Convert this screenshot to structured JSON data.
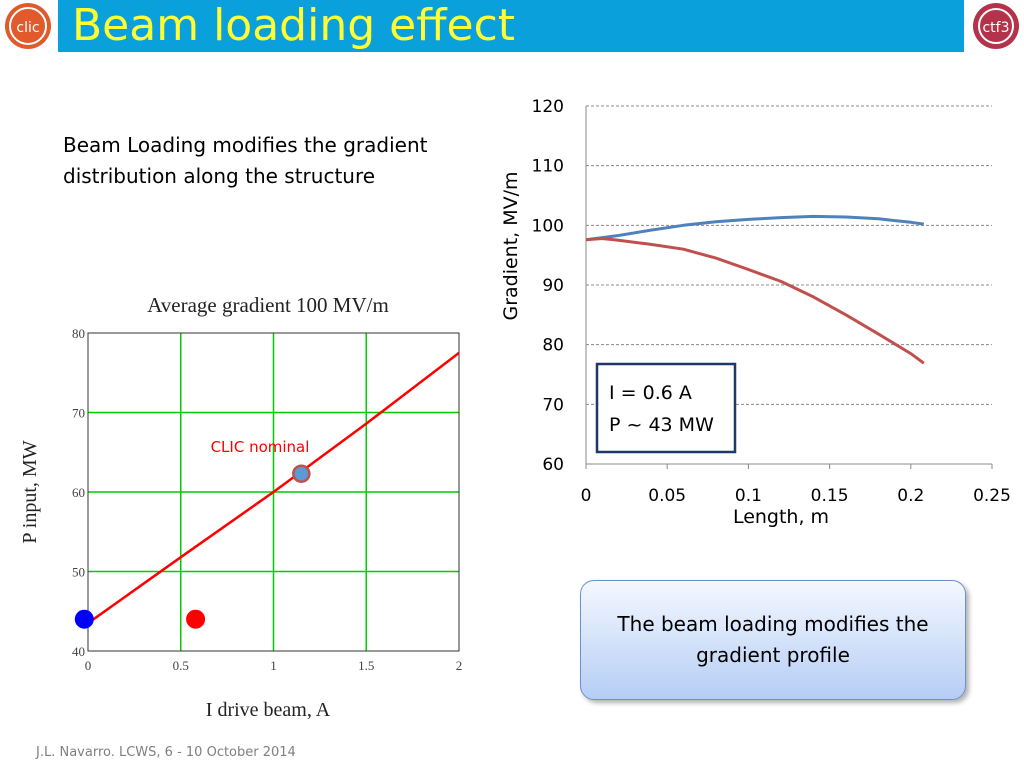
{
  "slide": {
    "title": "Beam loading effect",
    "intro": "Beam Loading modifies the gradient distribution along the structure",
    "footer": "J.L. Navarro. LCWS, 6 - 10 October 2014",
    "callout": "The beam loading modifies the gradient profile",
    "logos": {
      "left": "clic-logo-icon",
      "right": "ctf3-logo-icon"
    },
    "colors": {
      "header": "#0aa0dc",
      "title": "#ffff33"
    }
  },
  "chart_data": [
    {
      "type": "line",
      "title": "Average gradient 100 MV/m",
      "xlabel": "I drive beam, A",
      "ylabel": "P input, MW",
      "xlim": [
        0,
        2
      ],
      "ylim": [
        40,
        80
      ],
      "xticks": [
        0,
        0.5,
        1,
        1.5,
        2
      ],
      "xtick_labels": [
        "0",
        "0.5",
        "1",
        "1.5",
        "2"
      ],
      "yticks": [
        40,
        50,
        60,
        70,
        80
      ],
      "ytick_labels": [
        "40",
        "50",
        "60",
        "70",
        "80"
      ],
      "grid": true,
      "grid_color": "#00cc00",
      "series": [
        {
          "color": "#ff0000",
          "x": [
            0,
            0.5,
            1,
            1.5,
            2
          ],
          "y": [
            43.5,
            51.8,
            60.0,
            68.6,
            77.5
          ]
        }
      ],
      "points": [
        {
          "name": "CLIC nominal",
          "x": 1.15,
          "y": 62.3,
          "color": "#5b9bd5",
          "border": "#c0504d"
        },
        {
          "x": -0.02,
          "y": 44,
          "color": "#0000ff"
        },
        {
          "x": 0.58,
          "y": 44,
          "color": "#ff0000"
        }
      ],
      "annotation": {
        "text": "CLIC nominal",
        "color": "#ff0000"
      }
    },
    {
      "type": "line",
      "title": "",
      "xlabel": "Length, m",
      "ylabel": "Gradient, MV/m",
      "xlim": [
        0,
        0.25
      ],
      "ylim": [
        60,
        120
      ],
      "xticks": [
        0,
        0.05,
        0.1,
        0.15,
        0.2,
        0.25
      ],
      "xtick_labels": [
        "0",
        "0.05",
        "0.1",
        "0.15",
        "0.2",
        "0.25"
      ],
      "yticks": [
        60,
        70,
        80,
        90,
        100,
        110,
        120
      ],
      "ytick_labels": [
        "60",
        "70",
        "80",
        "90",
        "100",
        "110",
        "120"
      ],
      "grid": true,
      "series": [
        {
          "color": "#4f81bd",
          "x": [
            0,
            0.02,
            0.04,
            0.06,
            0.08,
            0.1,
            0.12,
            0.14,
            0.16,
            0.18,
            0.2,
            0.208
          ],
          "y": [
            97.6,
            98.3,
            99.2,
            100.0,
            100.6,
            101.0,
            101.3,
            101.5,
            101.4,
            101.1,
            100.5,
            100.2
          ]
        },
        {
          "color": "#c0504d",
          "x": [
            0,
            0.01,
            0.02,
            0.04,
            0.06,
            0.08,
            0.1,
            0.12,
            0.14,
            0.16,
            0.18,
            0.2,
            0.208
          ],
          "y": [
            97.6,
            97.8,
            97.5,
            96.8,
            96.0,
            94.5,
            92.6,
            90.6,
            88.0,
            85.0,
            81.8,
            78.5,
            76.9
          ]
        }
      ],
      "legend_box": {
        "line1": "I = 0.6 A",
        "line2": "P ~ 43 MW"
      }
    }
  ]
}
